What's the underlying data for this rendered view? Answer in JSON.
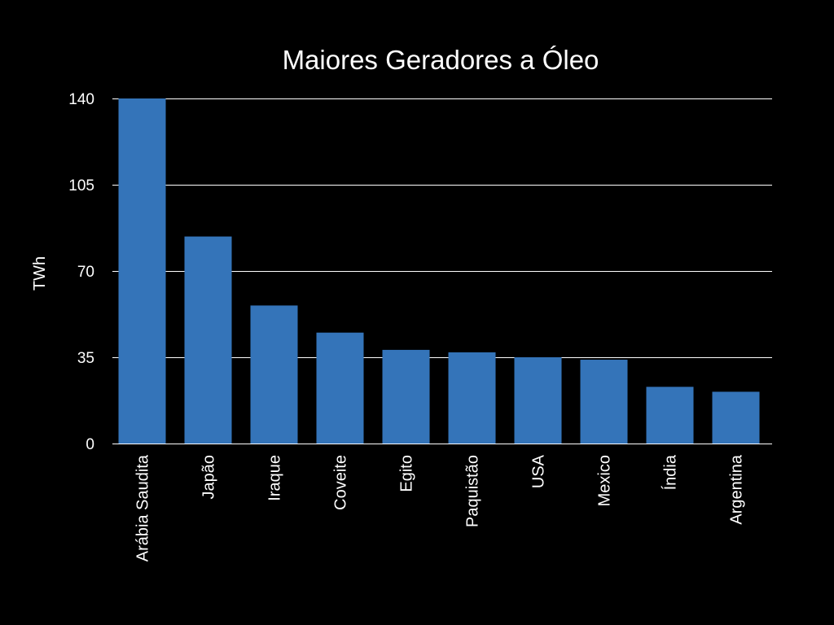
{
  "chart_data": {
    "type": "bar",
    "title": "Maiores Geradores a Óleo",
    "xlabel": "",
    "ylabel": "TWh",
    "categories": [
      "Arábia Saudita",
      "Japão",
      "Iraque",
      "Coveite",
      "Egito",
      "Paquistão",
      "USA",
      "Mexico",
      "Índia",
      "Argentina"
    ],
    "values": [
      140,
      84,
      56,
      45,
      38,
      37,
      35,
      34,
      23,
      21
    ],
    "ylim": [
      0,
      140
    ],
    "yticks": [
      "0",
      "35",
      "70",
      "105",
      "140"
    ],
    "grid": true,
    "legend": "none",
    "colors": {
      "bar": "#3474b9",
      "background": "#000000",
      "text": "#ffffff",
      "grid": "#ffffff"
    }
  }
}
